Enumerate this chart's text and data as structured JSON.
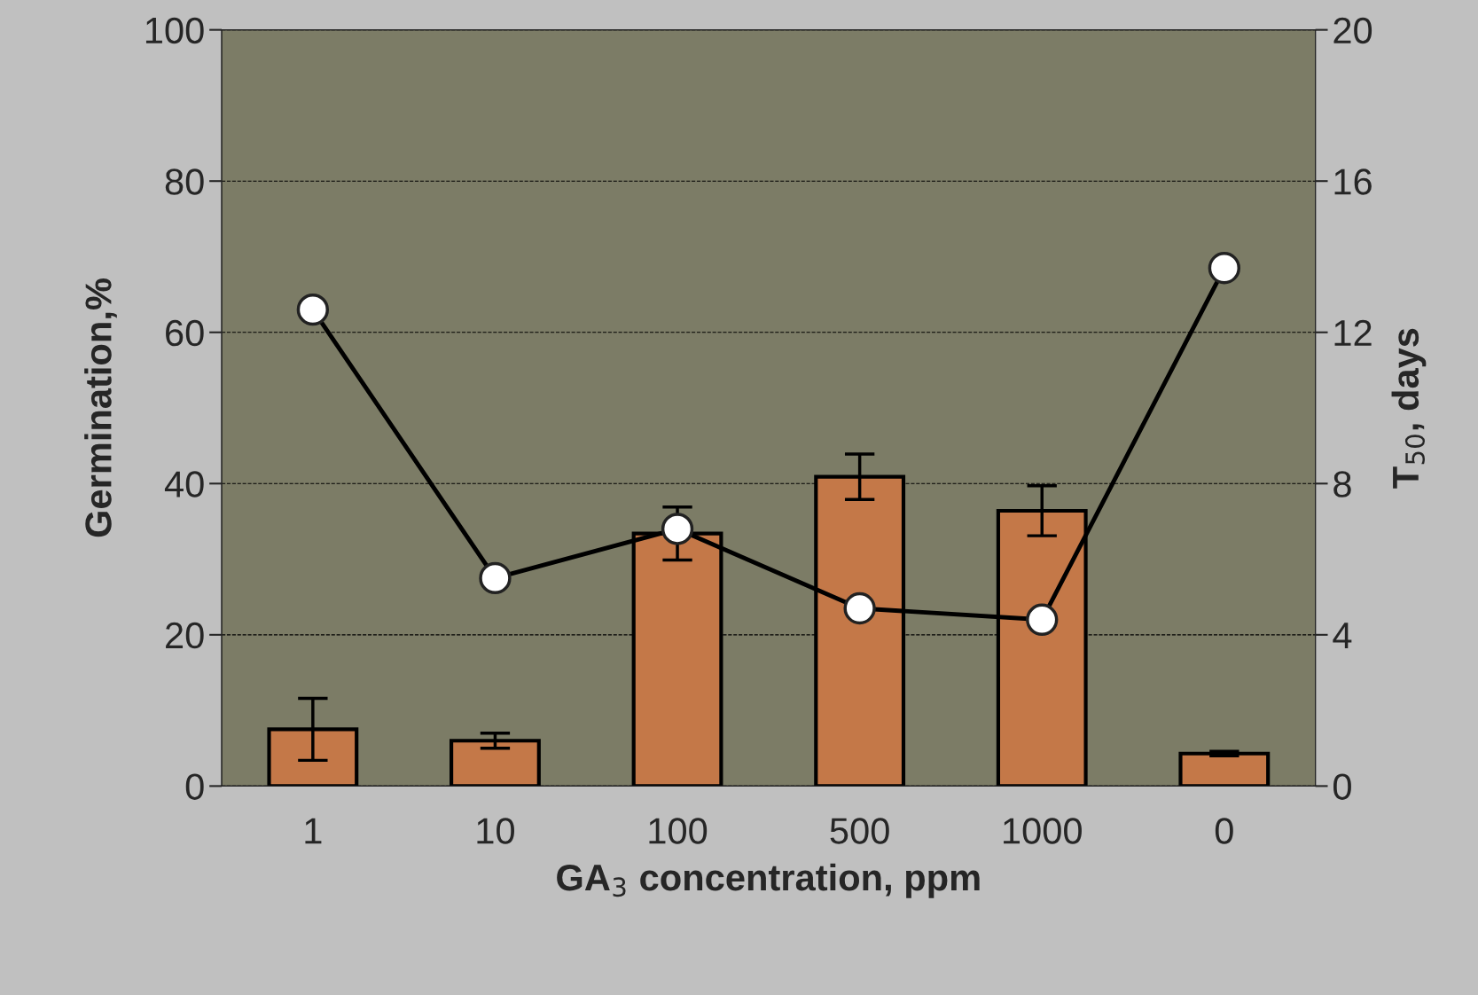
{
  "chart_data": {
    "type": "bar",
    "xlabel": "GA$_{3}$ concentration, ppm",
    "ylabel": "Germination,%",
    "y2label": "T$_{50}$, days",
    "categories": [
      "1",
      "10",
      "100",
      "500",
      "1000",
      "0"
    ],
    "series": [
      {
        "color": "#c47848",
        "values": [
          7.5,
          6.0,
          33.4,
          40.9,
          36.4,
          4.3
        ],
        "errors": [
          4.1,
          1.0,
          3.5,
          3.0,
          3.3,
          0.3
        ]
      },
      {
        "type": "line",
        "axis": "y2",
        "color": "#000000",
        "values": [
          12.6,
          5.5,
          6.8,
          4.7,
          4.4,
          13.7
        ],
        "marker": "circle"
      }
    ],
    "ylim": [
      0,
      100
    ],
    "yticks": [
      0,
      20,
      40,
      60,
      80,
      100
    ],
    "y2lim": [
      0,
      20
    ],
    "y2ticks": [
      0,
      4,
      8,
      12,
      16,
      20
    ],
    "grid": "y"
  }
}
